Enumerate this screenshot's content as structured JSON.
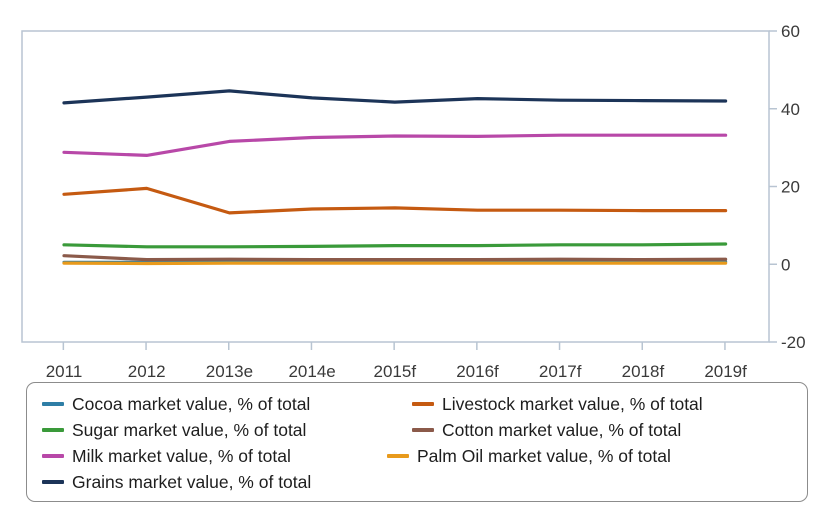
{
  "chart_data": {
    "type": "line",
    "title": "",
    "xlabel": "",
    "ylabel": "",
    "categories": [
      "2011",
      "2012",
      "2013e",
      "2014e",
      "2015f",
      "2016f",
      "2017f",
      "2018f",
      "2019f"
    ],
    "ylim": [
      -20,
      60
    ],
    "yticks": [
      -20,
      0,
      20,
      40,
      60
    ],
    "y_axis_side": "right",
    "grid": false,
    "legend_position": "bottom",
    "series": [
      {
        "name": "Cocoa market value, % of total",
        "color": "#2e7ea6",
        "values": [
          0.5,
          0.5,
          0.6,
          0.6,
          0.6,
          0.6,
          0.6,
          0.6,
          0.6
        ]
      },
      {
        "name": "Livestock market value, % of total",
        "color": "#c55a11",
        "values": [
          18.0,
          19.5,
          13.2,
          14.2,
          14.5,
          13.9,
          13.9,
          13.8,
          13.8
        ]
      },
      {
        "name": "Sugar market value, % of total",
        "color": "#3a9a3a",
        "values": [
          5.0,
          4.5,
          4.5,
          4.6,
          4.8,
          4.8,
          5.0,
          5.0,
          5.2
        ]
      },
      {
        "name": "Cotton market value, % of total",
        "color": "#8b5a4a",
        "values": [
          2.2,
          1.2,
          1.3,
          1.2,
          1.2,
          1.2,
          1.3,
          1.2,
          1.3
        ]
      },
      {
        "name": "Milk market value, % of total",
        "color": "#b848a8",
        "values": [
          28.8,
          28.0,
          31.6,
          32.6,
          33.0,
          32.9,
          33.2,
          33.2,
          33.2
        ]
      },
      {
        "name": "Palm Oil market value, % of total",
        "color": "#e89a1c",
        "values": [
          0.3,
          0.2,
          0.3,
          0.3,
          0.3,
          0.3,
          0.3,
          0.3,
          0.3
        ]
      },
      {
        "name": "Grains market value, % of total",
        "color": "#1c3458",
        "values": [
          41.5,
          43.0,
          44.6,
          42.8,
          41.7,
          42.6,
          42.2,
          42.1,
          42.0
        ]
      }
    ]
  }
}
